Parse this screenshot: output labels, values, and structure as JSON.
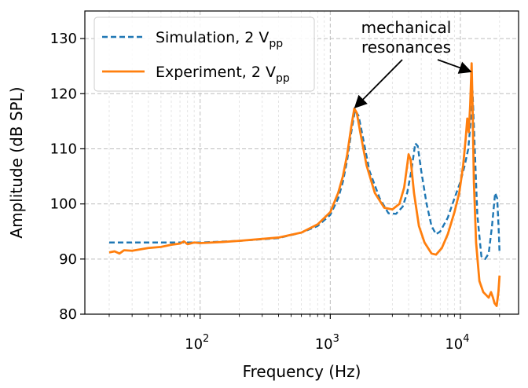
{
  "chart_data": {
    "type": "line",
    "xlabel": "Frequency (Hz)",
    "ylabel": "Amplitude (dB SPL)",
    "x_scale": "log",
    "xlim": [
      13,
      28000
    ],
    "ylim": [
      80,
      135
    ],
    "grid": true,
    "x_ticks": [
      100,
      1000,
      10000
    ],
    "x_tick_labels": [
      {
        "base": "10",
        "exp": "2"
      },
      {
        "base": "10",
        "exp": "3"
      },
      {
        "base": "10",
        "exp": "4"
      }
    ],
    "y_ticks": [
      80,
      90,
      100,
      110,
      120,
      130
    ],
    "y_tick_labels": [
      "80",
      "90",
      "100",
      "110",
      "120",
      "130"
    ],
    "legend_position": "top-left",
    "series": [
      {
        "name": "Simulation, 2 V",
        "name_sub": "pp",
        "style": "dashed",
        "color": "#1f77b4",
        "points": [
          [
            20,
            93
          ],
          [
            50,
            93
          ],
          [
            100,
            93
          ],
          [
            200,
            93.3
          ],
          [
            400,
            93.8
          ],
          [
            600,
            94.8
          ],
          [
            800,
            96
          ],
          [
            1000,
            98
          ],
          [
            1150,
            101
          ],
          [
            1250,
            104
          ],
          [
            1350,
            108
          ],
          [
            1450,
            113
          ],
          [
            1550,
            117
          ],
          [
            1650,
            116
          ],
          [
            1750,
            113
          ],
          [
            2000,
            106
          ],
          [
            2400,
            101
          ],
          [
            2800,
            98.3
          ],
          [
            3200,
            98.2
          ],
          [
            3600,
            99.5
          ],
          [
            3900,
            102
          ],
          [
            4200,
            106
          ],
          [
            4500,
            111
          ],
          [
            4700,
            110.5
          ],
          [
            5000,
            106
          ],
          [
            5500,
            100
          ],
          [
            6000,
            96
          ],
          [
            6500,
            94.5
          ],
          [
            7000,
            95
          ],
          [
            8000,
            97.5
          ],
          [
            9000,
            101
          ],
          [
            10000,
            104
          ],
          [
            10800,
            107
          ],
          [
            11500,
            110
          ],
          [
            12000,
            115
          ],
          [
            12400,
            120.5
          ],
          [
            12800,
            112
          ],
          [
            13500,
            98
          ],
          [
            14500,
            90.5
          ],
          [
            15500,
            90
          ],
          [
            16500,
            91
          ],
          [
            17500,
            96
          ],
          [
            18500,
            102
          ],
          [
            19200,
            101
          ],
          [
            19800,
            94
          ],
          [
            20000,
            91
          ]
        ]
      },
      {
        "name": "Experiment, 2 V",
        "name_sub": "pp",
        "style": "solid",
        "color": "#ff7f0e",
        "points": [
          [
            20,
            91.2
          ],
          [
            22,
            91.4
          ],
          [
            24,
            91
          ],
          [
            26,
            91.6
          ],
          [
            30,
            91.5
          ],
          [
            40,
            92
          ],
          [
            50,
            92.2
          ],
          [
            60,
            92.6
          ],
          [
            70,
            92.8
          ],
          [
            75,
            93.2
          ],
          [
            80,
            92.7
          ],
          [
            90,
            93
          ],
          [
            100,
            92.9
          ],
          [
            150,
            93.1
          ],
          [
            200,
            93.3
          ],
          [
            400,
            93.9
          ],
          [
            600,
            94.8
          ],
          [
            800,
            96.3
          ],
          [
            1000,
            98.5
          ],
          [
            1150,
            102
          ],
          [
            1250,
            105
          ],
          [
            1350,
            109
          ],
          [
            1450,
            114
          ],
          [
            1530,
            117.3
          ],
          [
            1600,
            116.5
          ],
          [
            1700,
            113
          ],
          [
            1900,
            107
          ],
          [
            2200,
            102
          ],
          [
            2600,
            99.3
          ],
          [
            3000,
            99
          ],
          [
            3400,
            100
          ],
          [
            3700,
            103
          ],
          [
            3900,
            107
          ],
          [
            4000,
            109
          ],
          [
            4150,
            108
          ],
          [
            4400,
            102
          ],
          [
            4800,
            96
          ],
          [
            5300,
            93
          ],
          [
            6000,
            91
          ],
          [
            6500,
            90.8
          ],
          [
            7200,
            92
          ],
          [
            8000,
            94.5
          ],
          [
            9000,
            98.5
          ],
          [
            9800,
            102
          ],
          [
            10500,
            107
          ],
          [
            11000,
            112
          ],
          [
            11300,
            115.5
          ],
          [
            11600,
            113
          ],
          [
            11900,
            118
          ],
          [
            12200,
            125.5
          ],
          [
            12400,
            118
          ],
          [
            12700,
            104
          ],
          [
            13200,
            93
          ],
          [
            14000,
            86
          ],
          [
            15000,
            84
          ],
          [
            16500,
            83
          ],
          [
            17200,
            84
          ],
          [
            17800,
            83
          ],
          [
            18300,
            82
          ],
          [
            19000,
            81.5
          ],
          [
            19600,
            84
          ],
          [
            20000,
            87
          ]
        ]
      }
    ],
    "annotation": {
      "lines": [
        "mechanical",
        "resonances"
      ],
      "targets": [
        [
          1550,
          117.5
        ],
        [
          12000,
          124
        ]
      ]
    }
  }
}
